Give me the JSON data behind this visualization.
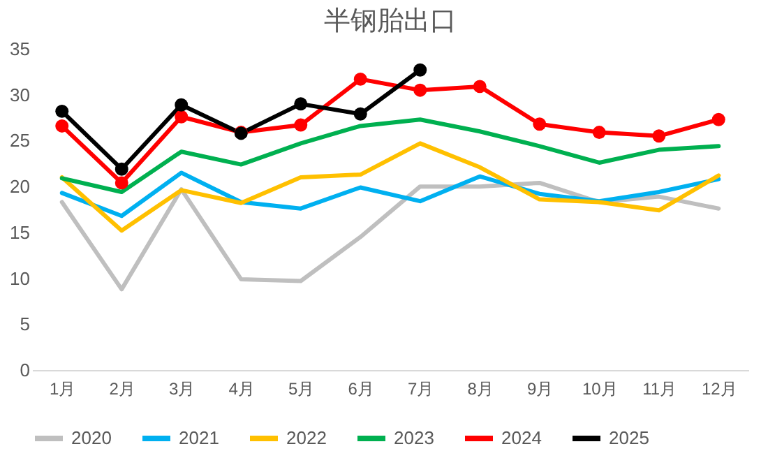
{
  "chart_data": {
    "type": "line",
    "title": "半钢胎出口",
    "categories": [
      "1月",
      "2月",
      "3月",
      "4月",
      "5月",
      "6月",
      "7月",
      "8月",
      "9月",
      "10月",
      "11月",
      "12月"
    ],
    "ylim": [
      0,
      35
    ],
    "yticks": [
      0,
      5,
      10,
      15,
      20,
      25,
      30,
      35
    ],
    "grid": false,
    "legend": "bottom",
    "series": [
      {
        "name": "2020",
        "color": "#bfbfbf",
        "values": [
          18.3,
          8.8,
          19.7,
          9.9,
          9.7,
          14.5,
          20.0,
          20.0,
          20.4,
          18.3,
          18.9,
          17.6
        ]
      },
      {
        "name": "2021",
        "color": "#00b0f0",
        "values": [
          19.3,
          16.8,
          21.5,
          18.3,
          17.6,
          19.9,
          18.4,
          21.1,
          19.2,
          18.4,
          19.4,
          20.8
        ]
      },
      {
        "name": "2022",
        "color": "#ffc000",
        "values": [
          21.0,
          15.2,
          19.6,
          18.2,
          21.0,
          21.3,
          24.7,
          22.1,
          18.6,
          18.3,
          17.4,
          21.2
        ]
      },
      {
        "name": "2023",
        "color": "#00b050",
        "values": [
          20.9,
          19.4,
          23.8,
          22.4,
          24.7,
          26.6,
          27.3,
          26.0,
          24.4,
          22.6,
          24.0,
          24.4
        ]
      },
      {
        "name": "2024",
        "color": "#ff0000",
        "marker": "circle",
        "values": [
          26.6,
          20.4,
          27.6,
          25.9,
          26.7,
          31.7,
          30.5,
          30.9,
          26.8,
          25.9,
          25.5,
          27.3
        ]
      },
      {
        "name": "2025",
        "color": "#000000",
        "marker": "circle",
        "values": [
          28.2,
          21.9,
          28.9,
          25.8,
          29.0,
          27.9,
          32.7,
          null,
          null,
          null,
          null,
          null
        ]
      }
    ]
  }
}
